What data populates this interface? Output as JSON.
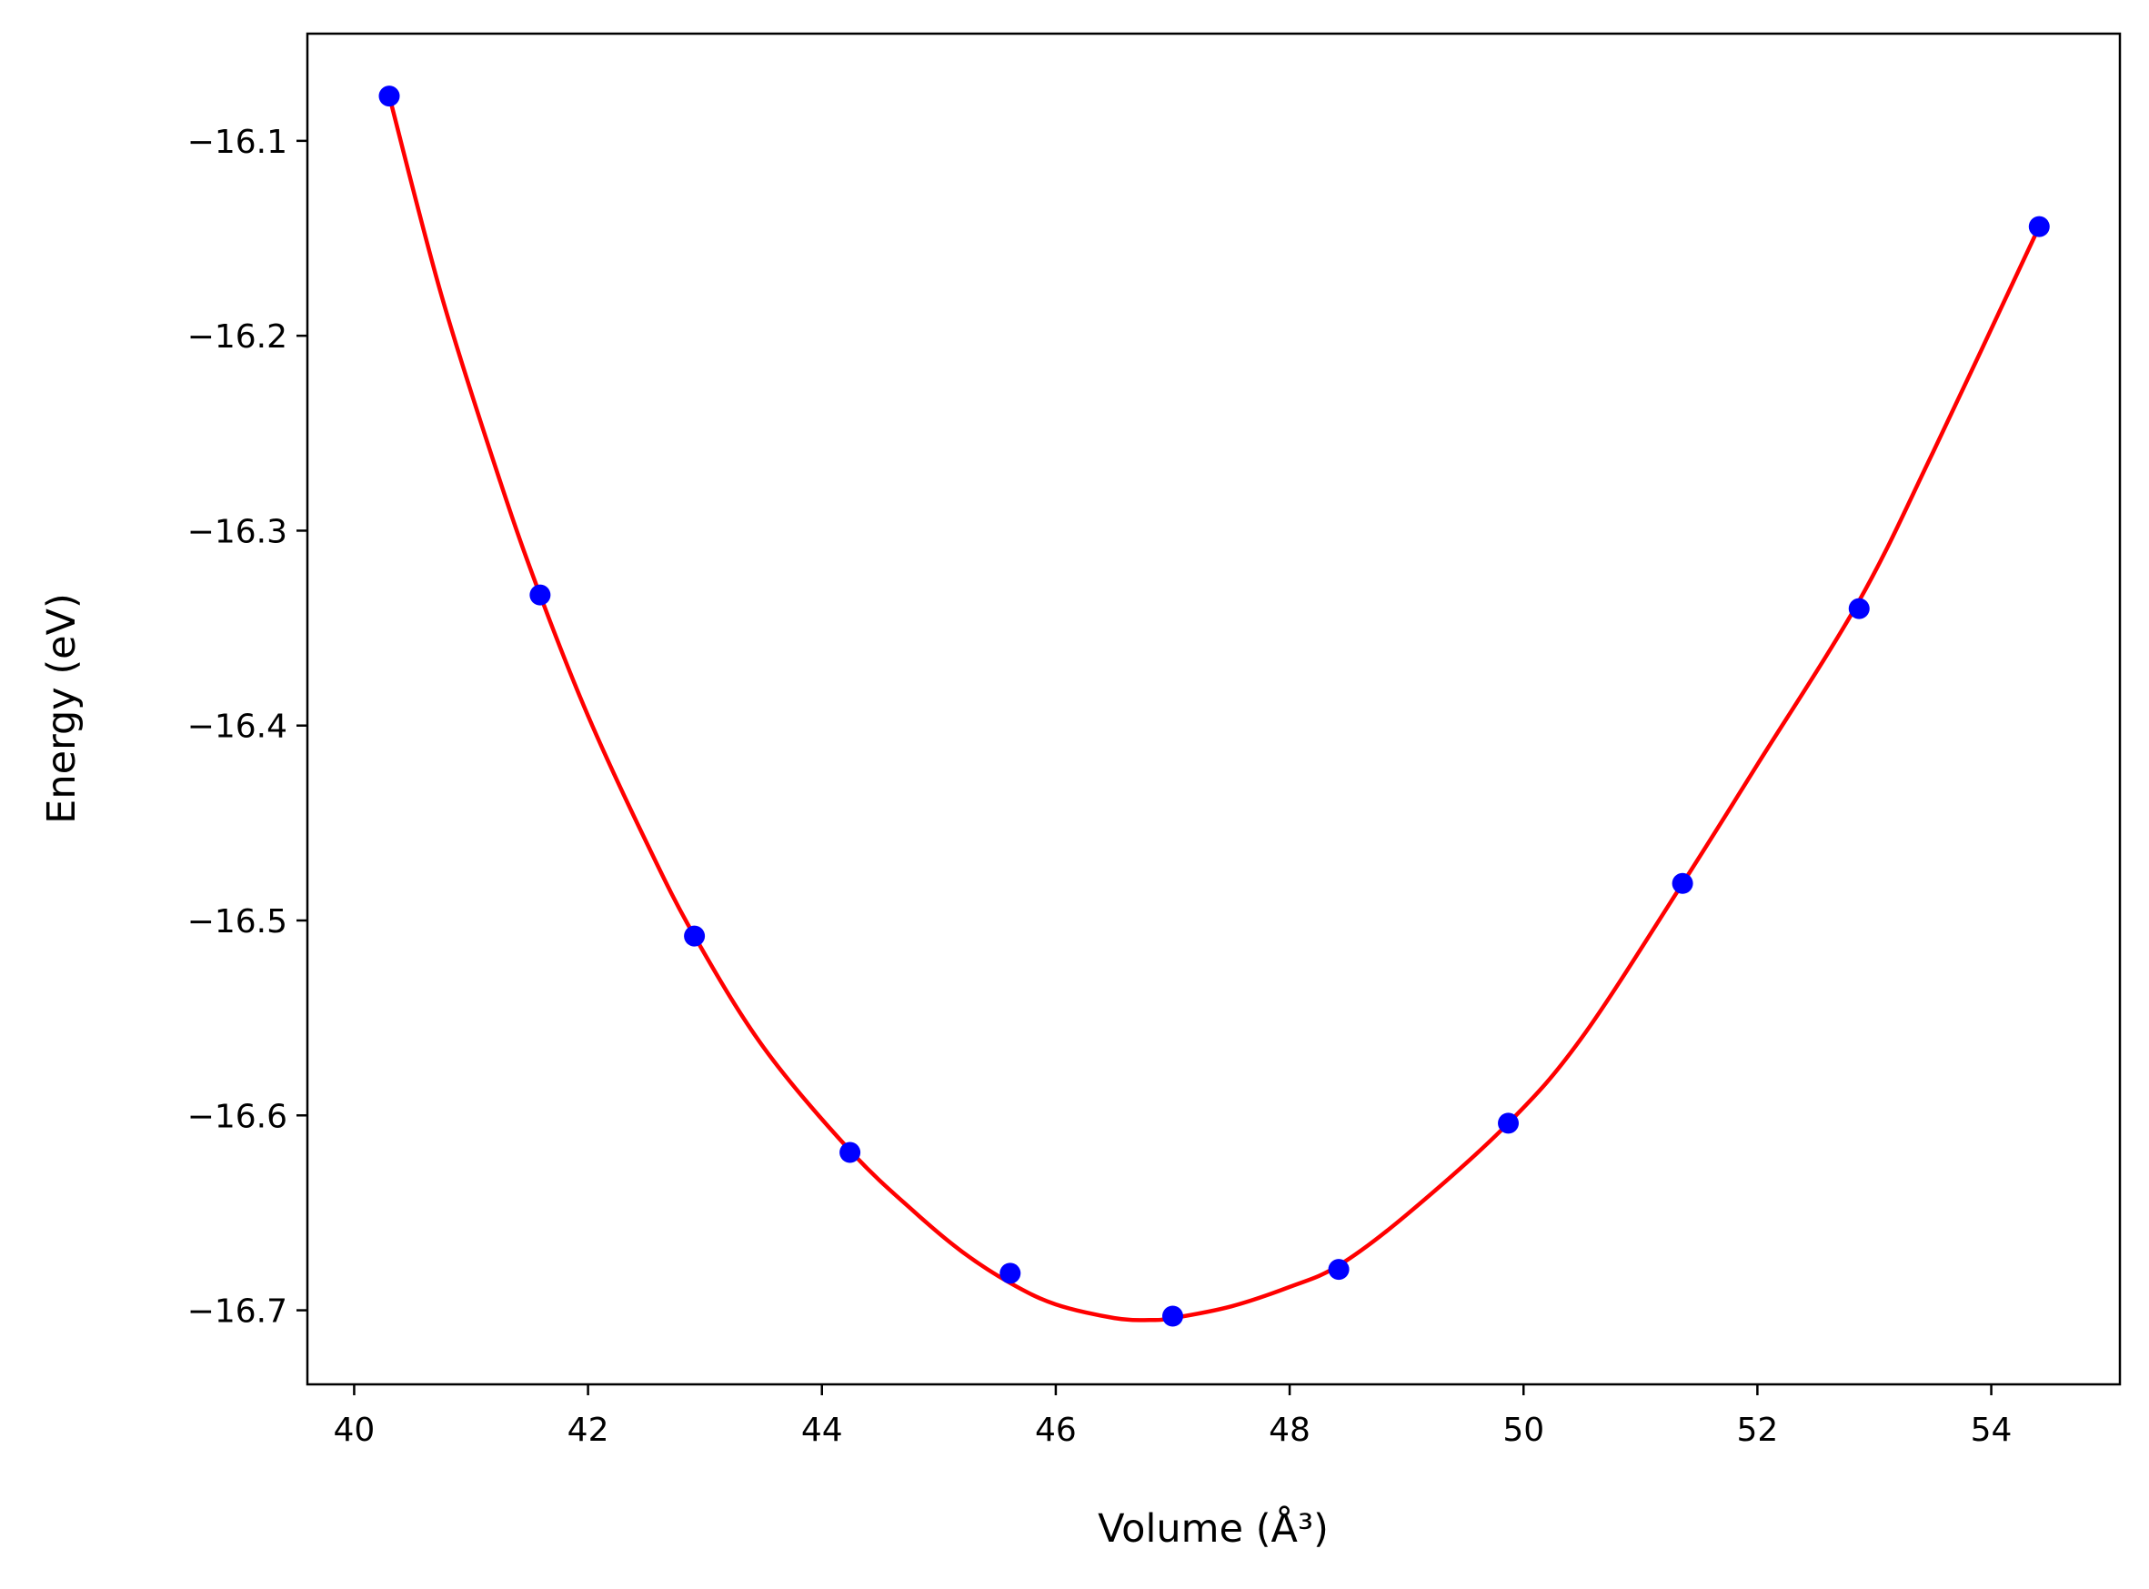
{
  "chart_data": {
    "type": "scatter",
    "title": "",
    "xlabel": "Volume (Å³)",
    "ylabel": "Energy (eV)",
    "xlim": [
      39.6,
      55.1
    ],
    "ylim": [
      -16.738,
      -16.045
    ],
    "xticks": [
      40,
      42,
      44,
      46,
      48,
      50,
      52,
      54
    ],
    "yticks": [
      -16.1,
      -16.2,
      -16.3,
      -16.4,
      -16.5,
      -16.6,
      -16.7
    ],
    "xtick_labels": [
      "40",
      "42",
      "44",
      "46",
      "48",
      "50",
      "52",
      "54"
    ],
    "ytick_labels": [
      "−16.1",
      "−16.2",
      "−16.3",
      "−16.4",
      "−16.5",
      "−16.6",
      "−16.7"
    ],
    "grid": false,
    "series": [
      {
        "kind": "points",
        "color": "#0000ff",
        "x": [
          40.3,
          41.59,
          42.91,
          44.24,
          45.61,
          47.0,
          48.42,
          49.87,
          51.36,
          52.87,
          54.41
        ],
        "y": [
          -16.077,
          -16.333,
          -16.508,
          -16.619,
          -16.681,
          -16.703,
          -16.679,
          -16.604,
          -16.481,
          -16.34,
          -16.144
        ]
      },
      {
        "kind": "line",
        "color": "#ff0000",
        "x": [
          40.3,
          40.75,
          41.25,
          41.59,
          42.0,
          42.5,
          42.91,
          43.5,
          44.24,
          44.8,
          45.2,
          45.61,
          46.0,
          46.5,
          46.8,
          47.0,
          47.5,
          48.0,
          48.42,
          49.0,
          49.87,
          50.5,
          51.36,
          52.0,
          52.87,
          53.5,
          54.41
        ],
        "y": [
          -16.077,
          -16.18,
          -16.275,
          -16.333,
          -16.395,
          -16.46,
          -16.508,
          -16.565,
          -16.618,
          -16.65,
          -16.67,
          -16.686,
          -16.697,
          -16.704,
          -16.705,
          -16.704,
          -16.698,
          -16.688,
          -16.677,
          -16.651,
          -16.604,
          -16.56,
          -16.481,
          -16.42,
          -16.336,
          -16.26,
          -16.144
        ]
      }
    ]
  }
}
